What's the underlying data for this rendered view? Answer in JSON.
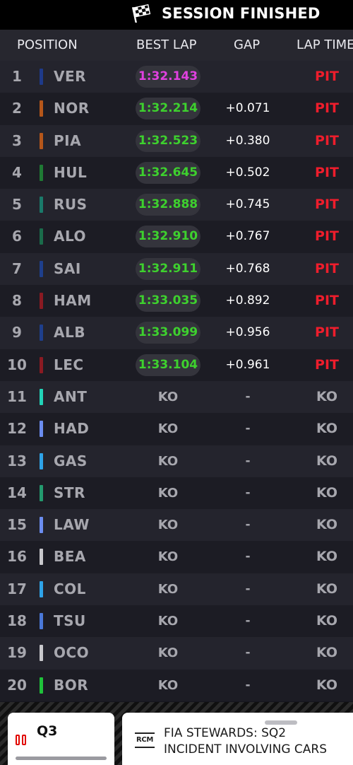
{
  "top_bar": {
    "status": "SESSION FINISHED",
    "icon": "checkered-flag-icon"
  },
  "columns": {
    "position": "POSITION",
    "best_lap": "BEST LAP",
    "gap": "GAP",
    "lap_time": "LAP TIME"
  },
  "rows": [
    {
      "pos": "1",
      "code": "VER",
      "team_color": "#1e3a8a",
      "best_lap": "1:32.143",
      "best_type": "purple",
      "gap": "",
      "lap_time": "PIT"
    },
    {
      "pos": "2",
      "code": "NOR",
      "team_color": "#b5561a",
      "best_lap": "1:32.214",
      "best_type": "green",
      "gap": "+0.071",
      "lap_time": "PIT"
    },
    {
      "pos": "3",
      "code": "PIA",
      "team_color": "#b5561a",
      "best_lap": "1:32.523",
      "best_type": "green",
      "gap": "+0.380",
      "lap_time": "PIT"
    },
    {
      "pos": "4",
      "code": "HUL",
      "team_color": "#1f7a34",
      "best_lap": "1:32.645",
      "best_type": "green",
      "gap": "+0.502",
      "lap_time": "PIT"
    },
    {
      "pos": "5",
      "code": "RUS",
      "team_color": "#1a7a6a",
      "best_lap": "1:32.888",
      "best_type": "green",
      "gap": "+0.745",
      "lap_time": "PIT"
    },
    {
      "pos": "6",
      "code": "ALO",
      "team_color": "#1a6b4a",
      "best_lap": "1:32.910",
      "best_type": "green",
      "gap": "+0.767",
      "lap_time": "PIT"
    },
    {
      "pos": "7",
      "code": "SAI",
      "team_color": "#1e3f8c",
      "best_lap": "1:32.911",
      "best_type": "green",
      "gap": "+0.768",
      "lap_time": "PIT"
    },
    {
      "pos": "8",
      "code": "HAM",
      "team_color": "#8a1a22",
      "best_lap": "1:33.035",
      "best_type": "green",
      "gap": "+0.892",
      "lap_time": "PIT"
    },
    {
      "pos": "9",
      "code": "ALB",
      "team_color": "#1e3f8c",
      "best_lap": "1:33.099",
      "best_type": "green",
      "gap": "+0.956",
      "lap_time": "PIT"
    },
    {
      "pos": "10",
      "code": "LEC",
      "team_color": "#8a1a22",
      "best_lap": "1:33.104",
      "best_type": "green",
      "gap": "+0.961",
      "lap_time": "PIT"
    },
    {
      "pos": "11",
      "code": "ANT",
      "team_color": "#22d3b8",
      "best_lap": "KO",
      "best_type": "ko",
      "gap": "-",
      "lap_time": "KO"
    },
    {
      "pos": "12",
      "code": "HAD",
      "team_color": "#6b8df0",
      "best_lap": "KO",
      "best_type": "ko",
      "gap": "-",
      "lap_time": "KO"
    },
    {
      "pos": "13",
      "code": "GAS",
      "team_color": "#2ea3e8",
      "best_lap": "KO",
      "best_type": "ko",
      "gap": "-",
      "lap_time": "KO"
    },
    {
      "pos": "14",
      "code": "STR",
      "team_color": "#239a6e",
      "best_lap": "KO",
      "best_type": "ko",
      "gap": "-",
      "lap_time": "KO"
    },
    {
      "pos": "15",
      "code": "LAW",
      "team_color": "#6b8df0",
      "best_lap": "KO",
      "best_type": "ko",
      "gap": "-",
      "lap_time": "KO"
    },
    {
      "pos": "16",
      "code": "BEA",
      "team_color": "#c8c8cc",
      "best_lap": "KO",
      "best_type": "ko",
      "gap": "-",
      "lap_time": "KO"
    },
    {
      "pos": "17",
      "code": "COL",
      "team_color": "#2ea3e8",
      "best_lap": "KO",
      "best_type": "ko",
      "gap": "-",
      "lap_time": "KO"
    },
    {
      "pos": "18",
      "code": "TSU",
      "team_color": "#4a78d8",
      "best_lap": "KO",
      "best_type": "ko",
      "gap": "-",
      "lap_time": "KO"
    },
    {
      "pos": "19",
      "code": "OCO",
      "team_color": "#c8c8cc",
      "best_lap": "KO",
      "best_type": "ko",
      "gap": "-",
      "lap_time": "KO"
    },
    {
      "pos": "20",
      "code": "BOR",
      "team_color": "#1fc23a",
      "best_lap": "KO",
      "best_type": "ko",
      "gap": "-",
      "lap_time": "KO"
    }
  ],
  "footer": {
    "session_card": {
      "label": "Q3",
      "icon": "pause-icon"
    },
    "rcm_card": {
      "icon_text": "RCM",
      "line1": "FIA STEWARDS: SQ2",
      "line2": "INCIDENT INVOLVING CARS"
    }
  },
  "colors": {
    "purple_lap": "#e041e0",
    "green_lap": "#3ed12e",
    "pit": "#ee1d2c",
    "background": "#15151e"
  }
}
